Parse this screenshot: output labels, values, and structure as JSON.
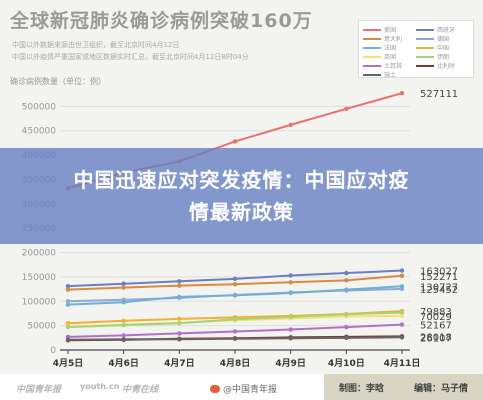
{
  "header": {
    "title": "全球新冠肺炎确诊病例突破160万",
    "notes": [
      "中国以外数据来源由世卫组织，截至北京时间4月12日",
      "中国以外疫情严重国家或地区数据实时汇总，截至北京时间4月12日8时04分"
    ]
  },
  "overlay": {
    "headline": "中国迅速应对突发疫情：中国应对疫情最新政策"
  },
  "footer": {
    "logo1": "中国青年报",
    "logo2": "youth.cn",
    "logo3": "中青在线",
    "weibo": "@中国青年报",
    "credits": [
      "制图：李晗",
      "编辑：马子倩"
    ]
  },
  "chart_data": {
    "type": "line",
    "ylabel": "确诊病例数量（单位：例）",
    "x": [
      "4月5日",
      "4月6日",
      "4月7日",
      "4月8日",
      "4月9日",
      "4月10日",
      "4月11日"
    ],
    "ylim": [
      0,
      550000
    ],
    "yticks": [
      0,
      50000,
      100000,
      150000,
      200000,
      250000,
      300000,
      350000,
      400000,
      450000,
      500000
    ],
    "grid": true,
    "legend_position": "top-right",
    "series": [
      {
        "name": "美国",
        "color": "#e87070",
        "values": [
          332000,
          364000,
          387000,
          428000,
          462000,
          495000,
          527111
        ]
      },
      {
        "name": "西班牙",
        "color": "#6a7fc0",
        "values": [
          131000,
          136000,
          141000,
          146000,
          153000,
          158000,
          163027
        ]
      },
      {
        "name": "意大利",
        "color": "#d98a40",
        "values": [
          124000,
          128000,
          132000,
          135000,
          139000,
          143000,
          152271
        ]
      },
      {
        "name": "德国",
        "color": "#8fa8d8",
        "values": [
          100000,
          103000,
          107000,
          113000,
          118000,
          122000,
          125452
        ]
      },
      {
        "name": "法国",
        "color": "#6fb0d6",
        "values": [
          93000,
          98000,
          109000,
          112000,
          117000,
          124000,
          130727
        ]
      },
      {
        "name": "中国",
        "color": "#f0b030",
        "values": [
          55000,
          60000,
          64000,
          67000,
          70000,
          74000,
          79883
        ]
      },
      {
        "name": "英国",
        "color": "#f5e070",
        "values": [
          48000,
          52000,
          56000,
          61000,
          65000,
          69000,
          70029
        ]
      },
      {
        "name": "伊朗",
        "color": "#a6d27a",
        "values": [
          47000,
          51000,
          55000,
          63000,
          68000,
          73000,
          77000
        ]
      },
      {
        "name": "土耳其",
        "color": "#b070c8",
        "values": [
          27000,
          30000,
          34000,
          38000,
          42000,
          47000,
          52167
        ]
      },
      {
        "name": "比利时",
        "color": "#7a3a2a",
        "values": [
          20000,
          21000,
          23000,
          24000,
          26000,
          27000,
          28018
        ]
      },
      {
        "name": "瑞士",
        "color": "#666666",
        "values": [
          21000,
          22000,
          22000,
          23000,
          24000,
          25000,
          26107
        ]
      }
    ],
    "data_labels": [
      527111,
      163027,
      152271,
      130727,
      125452,
      79883,
      70029,
      52167,
      28018,
      26107
    ]
  }
}
